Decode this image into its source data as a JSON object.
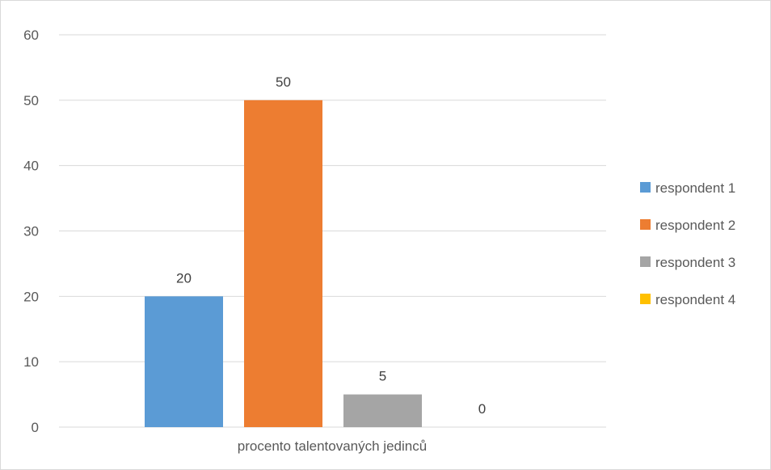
{
  "chart_data": {
    "type": "bar",
    "categories": [
      "procento talentovaných jedinců"
    ],
    "series": [
      {
        "name": "respondent 1",
        "values": [
          20
        ],
        "color": "#5B9BD5"
      },
      {
        "name": "respondent 2",
        "values": [
          50
        ],
        "color": "#ED7D31"
      },
      {
        "name": "respondent 3",
        "values": [
          5
        ],
        "color": "#A5A5A5"
      },
      {
        "name": "respondent 4",
        "values": [
          0
        ],
        "color": "#FFC000"
      }
    ],
    "yticks": [
      "0",
      "10",
      "20",
      "30",
      "40",
      "50",
      "60"
    ],
    "data_labels": [
      "20",
      "50",
      "5",
      "0"
    ],
    "ylim": [
      0,
      60
    ],
    "grid": true,
    "legend_position": "right"
  }
}
